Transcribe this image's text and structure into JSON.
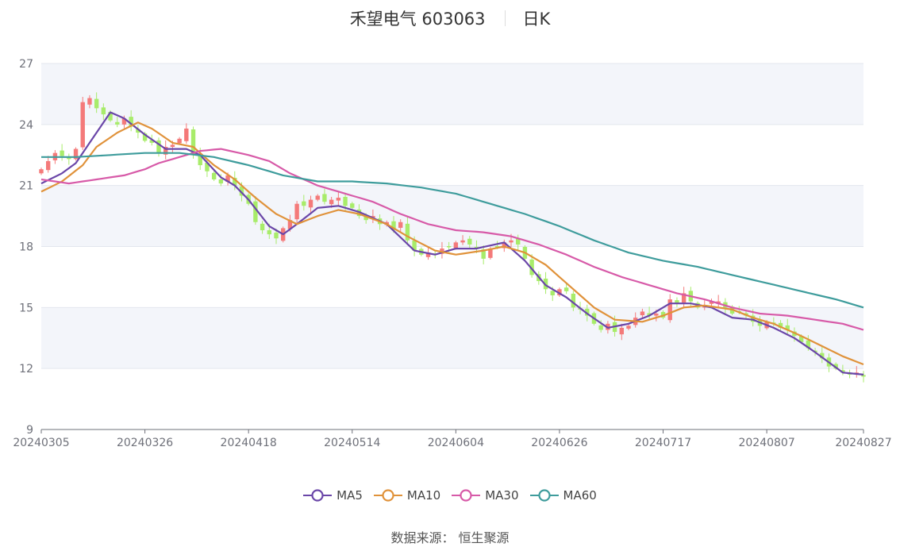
{
  "header": {
    "title": "禾望电气 603063",
    "period": "日K"
  },
  "footer": {
    "source": "数据来源： 恒生聚源"
  },
  "colors": {
    "up": "#f47a7a",
    "down": "#a8ec6a",
    "ma5": "#6a46a8",
    "ma10": "#e0923a",
    "ma30": "#d75aa8",
    "ma60": "#3e9c9c",
    "band": "#f3f5fa",
    "grid": "#e3e6ee",
    "axis": "#6e7079"
  },
  "chart_data": {
    "type": "candlestick",
    "ylim": [
      9,
      27
    ],
    "yticks": [
      9,
      12,
      15,
      18,
      21,
      24,
      27
    ],
    "x_tick_labels": [
      "20240305",
      "20240326",
      "20240418",
      "20240514",
      "20240604",
      "20240626",
      "20240717",
      "20240807",
      "20240827"
    ],
    "x_tick_indices": [
      0,
      15,
      30,
      45,
      60,
      75,
      90,
      105,
      119
    ],
    "num_days": 120,
    "legend": [
      {
        "key": "ma5",
        "name": "MA5"
      },
      {
        "key": "ma10",
        "name": "MA10"
      },
      {
        "key": "ma30",
        "name": "MA30"
      },
      {
        "key": "ma60",
        "name": "MA60"
      }
    ],
    "close_anchors": [
      [
        0,
        21.8
      ],
      [
        2,
        22.6
      ],
      [
        4,
        22.3
      ],
      [
        5,
        22.8
      ],
      [
        6,
        25.1
      ],
      [
        7,
        25.3
      ],
      [
        8,
        24.8
      ],
      [
        9,
        24.5
      ],
      [
        10,
        24.2
      ],
      [
        11,
        24.0
      ],
      [
        12,
        24.3
      ],
      [
        13,
        23.9
      ],
      [
        14,
        23.6
      ],
      [
        15,
        23.2
      ],
      [
        16,
        23.1
      ],
      [
        17,
        22.6
      ],
      [
        18,
        22.9
      ],
      [
        19,
        23.0
      ],
      [
        20,
        23.3
      ],
      [
        21,
        23.8
      ],
      [
        22,
        22.5
      ],
      [
        23,
        22.0
      ],
      [
        24,
        21.7
      ],
      [
        25,
        21.3
      ],
      [
        26,
        21.1
      ],
      [
        27,
        21.5
      ],
      [
        28,
        21.0
      ],
      [
        29,
        20.5
      ],
      [
        30,
        20.1
      ],
      [
        31,
        19.2
      ],
      [
        32,
        18.8
      ],
      [
        33,
        18.6
      ],
      [
        34,
        18.4
      ],
      [
        35,
        18.9
      ],
      [
        36,
        19.3
      ],
      [
        37,
        20.1
      ],
      [
        38,
        20.0
      ],
      [
        39,
        20.3
      ],
      [
        40,
        20.5
      ],
      [
        41,
        20.2
      ],
      [
        42,
        20.3
      ],
      [
        43,
        20.4
      ],
      [
        44,
        20.0
      ],
      [
        45,
        19.9
      ],
      [
        46,
        19.5
      ],
      [
        47,
        19.3
      ],
      [
        48,
        19.5
      ],
      [
        49,
        19.1
      ],
      [
        50,
        19.2
      ],
      [
        51,
        18.8
      ],
      [
        52,
        19.2
      ],
      [
        53,
        18.3
      ],
      [
        54,
        17.8
      ],
      [
        55,
        17.6
      ],
      [
        56,
        17.7
      ],
      [
        57,
        17.6
      ],
      [
        58,
        17.9
      ],
      [
        59,
        18.0
      ],
      [
        60,
        18.2
      ],
      [
        61,
        18.3
      ],
      [
        62,
        18.1
      ],
      [
        63,
        17.9
      ],
      [
        64,
        17.4
      ],
      [
        65,
        17.9
      ],
      [
        66,
        18.0
      ],
      [
        67,
        18.2
      ],
      [
        68,
        18.3
      ],
      [
        69,
        18.1
      ],
      [
        70,
        17.4
      ],
      [
        71,
        16.6
      ],
      [
        72,
        16.3
      ],
      [
        73,
        15.9
      ],
      [
        74,
        15.6
      ],
      [
        75,
        15.9
      ],
      [
        76,
        15.8
      ],
      [
        77,
        15.0
      ],
      [
        78,
        14.9
      ],
      [
        79,
        14.6
      ],
      [
        80,
        14.2
      ],
      [
        81,
        13.9
      ],
      [
        82,
        14.2
      ],
      [
        83,
        13.8
      ],
      [
        84,
        14.0
      ],
      [
        85,
        14.1
      ],
      [
        86,
        14.5
      ],
      [
        87,
        14.8
      ],
      [
        88,
        14.6
      ],
      [
        89,
        14.7
      ],
      [
        90,
        14.5
      ],
      [
        91,
        15.4
      ],
      [
        92,
        15.2
      ],
      [
        93,
        15.7
      ],
      [
        94,
        15.3
      ],
      [
        95,
        15.0
      ],
      [
        96,
        15.1
      ],
      [
        97,
        15.3
      ],
      [
        98,
        15.3
      ],
      [
        99,
        15.0
      ],
      [
        100,
        14.7
      ],
      [
        101,
        14.8
      ],
      [
        102,
        14.6
      ],
      [
        103,
        14.3
      ],
      [
        104,
        14.1
      ],
      [
        105,
        14.3
      ],
      [
        106,
        14.2
      ],
      [
        107,
        14.0
      ],
      [
        108,
        13.9
      ],
      [
        109,
        13.6
      ],
      [
        110,
        13.3
      ],
      [
        111,
        13.0
      ],
      [
        112,
        12.8
      ],
      [
        113,
        12.5
      ],
      [
        114,
        12.1
      ],
      [
        115,
        12.0
      ],
      [
        116,
        11.8
      ],
      [
        117,
        11.7
      ],
      [
        118,
        11.8
      ],
      [
        119,
        11.6
      ]
    ],
    "ma5_anchors": [
      [
        0,
        21.1
      ],
      [
        3,
        21.6
      ],
      [
        5,
        22.1
      ],
      [
        8,
        23.6
      ],
      [
        10,
        24.6
      ],
      [
        12,
        24.3
      ],
      [
        15,
        23.5
      ],
      [
        18,
        22.8
      ],
      [
        21,
        22.8
      ],
      [
        23,
        22.5
      ],
      [
        26,
        21.4
      ],
      [
        28,
        21.0
      ],
      [
        30,
        20.3
      ],
      [
        33,
        19.0
      ],
      [
        35,
        18.6
      ],
      [
        37,
        19.1
      ],
      [
        40,
        19.9
      ],
      [
        43,
        20.0
      ],
      [
        46,
        19.7
      ],
      [
        50,
        19.1
      ],
      [
        54,
        17.8
      ],
      [
        57,
        17.6
      ],
      [
        60,
        17.9
      ],
      [
        63,
        17.9
      ],
      [
        67,
        18.2
      ],
      [
        70,
        17.3
      ],
      [
        73,
        16.1
      ],
      [
        76,
        15.5
      ],
      [
        79,
        14.7
      ],
      [
        82,
        14.0
      ],
      [
        85,
        14.2
      ],
      [
        88,
        14.6
      ],
      [
        91,
        15.2
      ],
      [
        94,
        15.2
      ],
      [
        97,
        15.0
      ],
      [
        100,
        14.5
      ],
      [
        103,
        14.4
      ],
      [
        106,
        14.0
      ],
      [
        109,
        13.5
      ],
      [
        112,
        12.8
      ],
      [
        116,
        11.8
      ],
      [
        119,
        11.7
      ]
    ],
    "ma10_anchors": [
      [
        0,
        20.7
      ],
      [
        3,
        21.2
      ],
      [
        6,
        22.0
      ],
      [
        8,
        22.9
      ],
      [
        11,
        23.6
      ],
      [
        14,
        24.1
      ],
      [
        16,
        23.8
      ],
      [
        19,
        23.1
      ],
      [
        22,
        22.9
      ],
      [
        25,
        22.0
      ],
      [
        28,
        21.3
      ],
      [
        31,
        20.4
      ],
      [
        34,
        19.6
      ],
      [
        37,
        19.1
      ],
      [
        40,
        19.5
      ],
      [
        43,
        19.8
      ],
      [
        46,
        19.6
      ],
      [
        50,
        19.1
      ],
      [
        53,
        18.5
      ],
      [
        57,
        17.8
      ],
      [
        60,
        17.6
      ],
      [
        64,
        17.8
      ],
      [
        67,
        18.0
      ],
      [
        70,
        17.7
      ],
      [
        73,
        17.1
      ],
      [
        76,
        16.2
      ],
      [
        80,
        15.0
      ],
      [
        83,
        14.4
      ],
      [
        87,
        14.3
      ],
      [
        90,
        14.6
      ],
      [
        93,
        15.0
      ],
      [
        96,
        15.1
      ],
      [
        100,
        14.9
      ],
      [
        103,
        14.5
      ],
      [
        106,
        14.2
      ],
      [
        110,
        13.6
      ],
      [
        113,
        13.1
      ],
      [
        116,
        12.6
      ],
      [
        119,
        12.2
      ]
    ],
    "ma30_anchors": [
      [
        0,
        21.3
      ],
      [
        4,
        21.1
      ],
      [
        8,
        21.3
      ],
      [
        12,
        21.5
      ],
      [
        15,
        21.8
      ],
      [
        17,
        22.1
      ],
      [
        20,
        22.4
      ],
      [
        23,
        22.7
      ],
      [
        26,
        22.8
      ],
      [
        30,
        22.5
      ],
      [
        33,
        22.2
      ],
      [
        36,
        21.6
      ],
      [
        40,
        21.0
      ],
      [
        44,
        20.6
      ],
      [
        48,
        20.2
      ],
      [
        52,
        19.6
      ],
      [
        56,
        19.1
      ],
      [
        60,
        18.8
      ],
      [
        64,
        18.7
      ],
      [
        68,
        18.5
      ],
      [
        72,
        18.1
      ],
      [
        76,
        17.6
      ],
      [
        80,
        17.0
      ],
      [
        84,
        16.5
      ],
      [
        88,
        16.1
      ],
      [
        92,
        15.7
      ],
      [
        96,
        15.4
      ],
      [
        100,
        15.0
      ],
      [
        104,
        14.7
      ],
      [
        108,
        14.6
      ],
      [
        112,
        14.4
      ],
      [
        116,
        14.2
      ],
      [
        119,
        13.9
      ]
    ],
    "ma60_anchors": [
      [
        0,
        22.4
      ],
      [
        5,
        22.4
      ],
      [
        10,
        22.5
      ],
      [
        15,
        22.6
      ],
      [
        20,
        22.6
      ],
      [
        25,
        22.4
      ],
      [
        30,
        22.0
      ],
      [
        35,
        21.5
      ],
      [
        40,
        21.2
      ],
      [
        45,
        21.2
      ],
      [
        50,
        21.1
      ],
      [
        55,
        20.9
      ],
      [
        60,
        20.6
      ],
      [
        65,
        20.1
      ],
      [
        70,
        19.6
      ],
      [
        75,
        19.0
      ],
      [
        80,
        18.3
      ],
      [
        85,
        17.7
      ],
      [
        90,
        17.3
      ],
      [
        95,
        17.0
      ],
      [
        100,
        16.6
      ],
      [
        105,
        16.2
      ],
      [
        110,
        15.8
      ],
      [
        115,
        15.4
      ],
      [
        119,
        15.0
      ]
    ]
  }
}
